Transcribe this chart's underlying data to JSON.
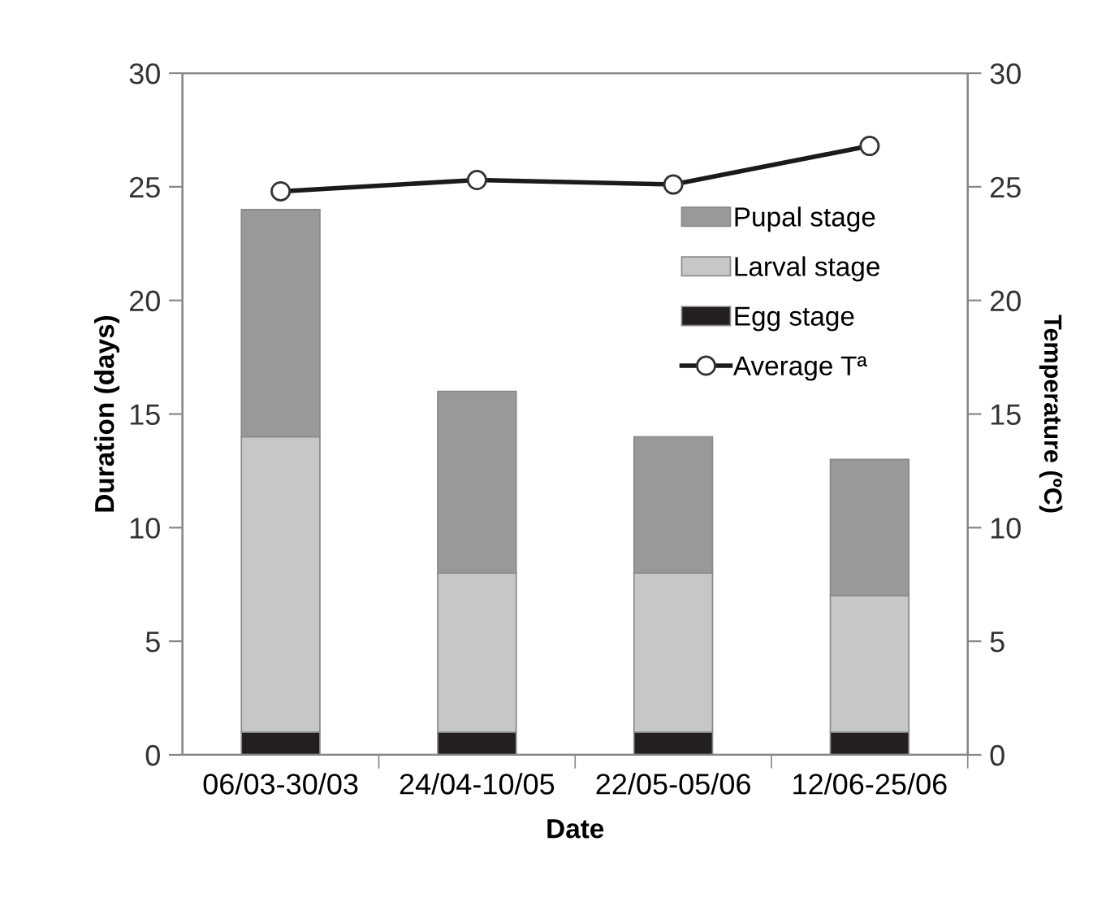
{
  "chart_data": {
    "type": "bar",
    "stacked": true,
    "xlabel": "Date",
    "ylabel": "Duration (days)",
    "y2label": "Temperature (ºC)",
    "categories": [
      "06/03-30/03",
      "24/04-10/05",
      "22/05-05/06",
      "12/06-25/06"
    ],
    "series": [
      {
        "name": "Egg stage",
        "color": "#231f20",
        "values": [
          1,
          1,
          1,
          1
        ]
      },
      {
        "name": "Larval stage",
        "color": "#c6c7c9",
        "values": [
          13,
          7,
          7,
          6
        ]
      },
      {
        "name": "Pupal stage",
        "color": "#98999b",
        "values": [
          10,
          8,
          6,
          6
        ]
      },
      {
        "name": "Average Tª",
        "type": "line",
        "axis": "y2",
        "color": "#1a1a1a",
        "marker": "circle",
        "values": [
          24.8,
          25.3,
          25.1,
          26.8
        ]
      }
    ],
    "ylim": [
      0,
      30
    ],
    "yticks": [
      0,
      5,
      10,
      15,
      20,
      25,
      30
    ],
    "y2lim": [
      0,
      30
    ],
    "y2ticks": [
      0,
      5,
      10,
      15,
      20,
      25,
      30
    ],
    "legend": "top right",
    "grid": false
  }
}
